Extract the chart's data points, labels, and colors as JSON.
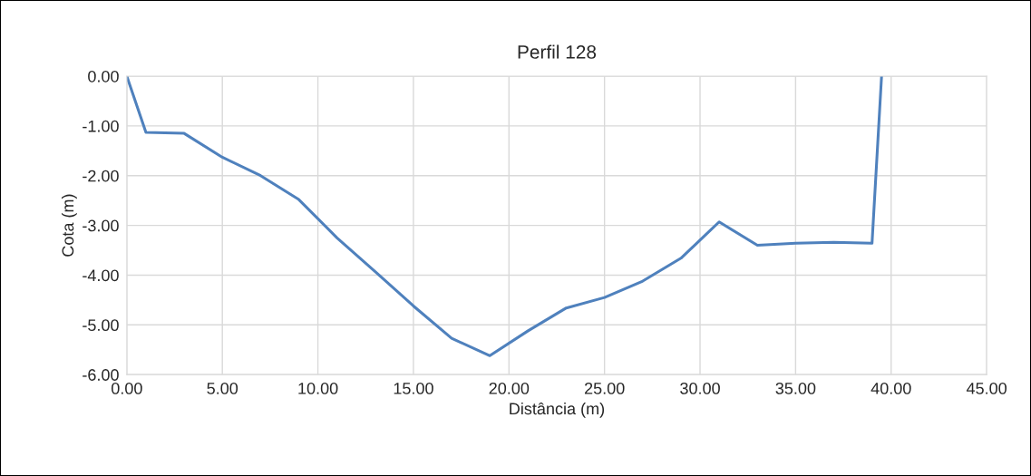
{
  "chart_data": {
    "type": "line",
    "title": "Perfil 128",
    "xlabel": "Distância (m)",
    "ylabel": "Cota (m)",
    "x": [
      0,
      1,
      3,
      5,
      7,
      9,
      11,
      13,
      15,
      17,
      19,
      21,
      23,
      25,
      27,
      29,
      31,
      33,
      35,
      37,
      39,
      39.5
    ],
    "series": [
      {
        "color": "#4f81bd",
        "values": [
          0,
          -1.13,
          -1.15,
          -1.63,
          -2.0,
          -2.48,
          -3.25,
          -3.93,
          -4.62,
          -5.27,
          -5.62,
          -5.12,
          -4.66,
          -4.45,
          -4.12,
          -3.66,
          -2.93,
          -3.4,
          -3.36,
          -3.34,
          -3.36,
          0
        ]
      }
    ],
    "xlim": [
      0,
      45
    ],
    "xticks": [
      {
        "value": 0,
        "label": "0.00"
      },
      {
        "value": 5,
        "label": "5.00"
      },
      {
        "value": 10,
        "label": "10.00"
      },
      {
        "value": 15,
        "label": "15.00"
      },
      {
        "value": 20,
        "label": "20.00"
      },
      {
        "value": 25,
        "label": "25.00"
      },
      {
        "value": 30,
        "label": "30.00"
      },
      {
        "value": 35,
        "label": "35.00"
      },
      {
        "value": 40,
        "label": "40.00"
      },
      {
        "value": 45,
        "label": "45.00"
      }
    ],
    "ylim": [
      -6,
      0
    ],
    "yticks": [
      {
        "value": -6,
        "label": "-6.00"
      },
      {
        "value": -5,
        "label": "-5.00"
      },
      {
        "value": -4,
        "label": "-4.00"
      },
      {
        "value": -3,
        "label": "-3.00"
      },
      {
        "value": -2,
        "label": "-2.00"
      },
      {
        "value": -1,
        "label": "-1.00"
      },
      {
        "value": 0,
        "label": "0.00"
      }
    ],
    "grid": true,
    "marker": "none",
    "line_style": "solid"
  }
}
